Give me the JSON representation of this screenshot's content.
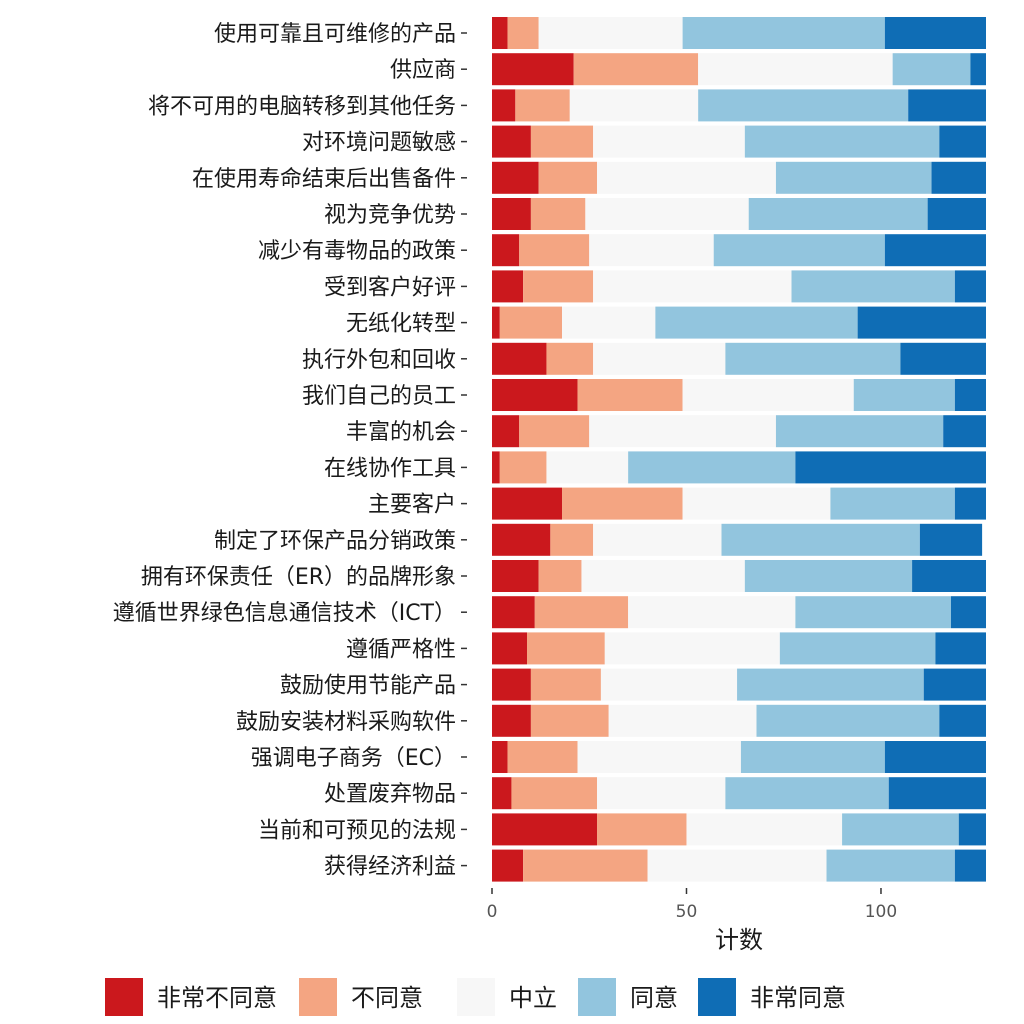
{
  "chart_data": {
    "type": "bar",
    "orientation": "horizontal",
    "stacked": true,
    "xlabel": "计数",
    "xlim": [
      0,
      127
    ],
    "xticks": [
      0,
      50,
      100
    ],
    "legend_position": "bottom",
    "grid": false,
    "categories": [
      "使用可靠且可维修的产品",
      "供应商",
      "将不可用的电脑转移到其他任务",
      "对环境问题敏感",
      "在使用寿命结束后出售备件",
      "视为竞争优势",
      "减少有毒物品的政策",
      "受到客户好评",
      "无纸化转型",
      "执行外包和回收",
      "我们自己的员工",
      "丰富的机会",
      "在线协作工具",
      "主要客户",
      "制定了环保产品分销政策",
      "拥有环保责任（ER）的品牌形象",
      "遵循世界绿色信息通信技术（ICT）",
      "遵循严格性",
      "鼓励使用节能产品",
      "鼓励安装材料采购软件",
      "强调电子商务（EC）",
      "处置废弃物品",
      "当前和可预见的法规",
      "获得经济利益"
    ],
    "series": [
      {
        "name": "非常不同意",
        "color": "#cb181d",
        "values": [
          4,
          21,
          6,
          10,
          12,
          10,
          7,
          8,
          2,
          14,
          22,
          7,
          2,
          18,
          15,
          12,
          11,
          9,
          10,
          10,
          4,
          5,
          27,
          8
        ]
      },
      {
        "name": "不同意",
        "color": "#f4a582",
        "values": [
          8,
          32,
          14,
          16,
          15,
          14,
          18,
          18,
          16,
          12,
          27,
          18,
          12,
          31,
          11,
          11,
          24,
          20,
          18,
          20,
          18,
          22,
          23,
          32
        ]
      },
      {
        "name": "中立",
        "color": "#f7f7f7",
        "values": [
          37,
          50,
          33,
          39,
          46,
          42,
          32,
          51,
          24,
          34,
          44,
          48,
          21,
          38,
          33,
          42,
          43,
          45,
          35,
          38,
          42,
          33,
          40,
          46
        ]
      },
      {
        "name": "同意",
        "color": "#92c5de",
        "values": [
          52,
          20,
          54,
          50,
          40,
          46,
          44,
          42,
          52,
          45,
          26,
          43,
          43,
          32,
          51,
          43,
          40,
          40,
          48,
          47,
          37,
          42,
          30,
          33
        ]
      },
      {
        "name": "非常同意",
        "color": "#0f6db5",
        "values": [
          26,
          4,
          20,
          12,
          14,
          15,
          26,
          8,
          33,
          22,
          8,
          11,
          49,
          8,
          16,
          19,
          9,
          13,
          16,
          12,
          26,
          25,
          7,
          8
        ]
      }
    ]
  }
}
